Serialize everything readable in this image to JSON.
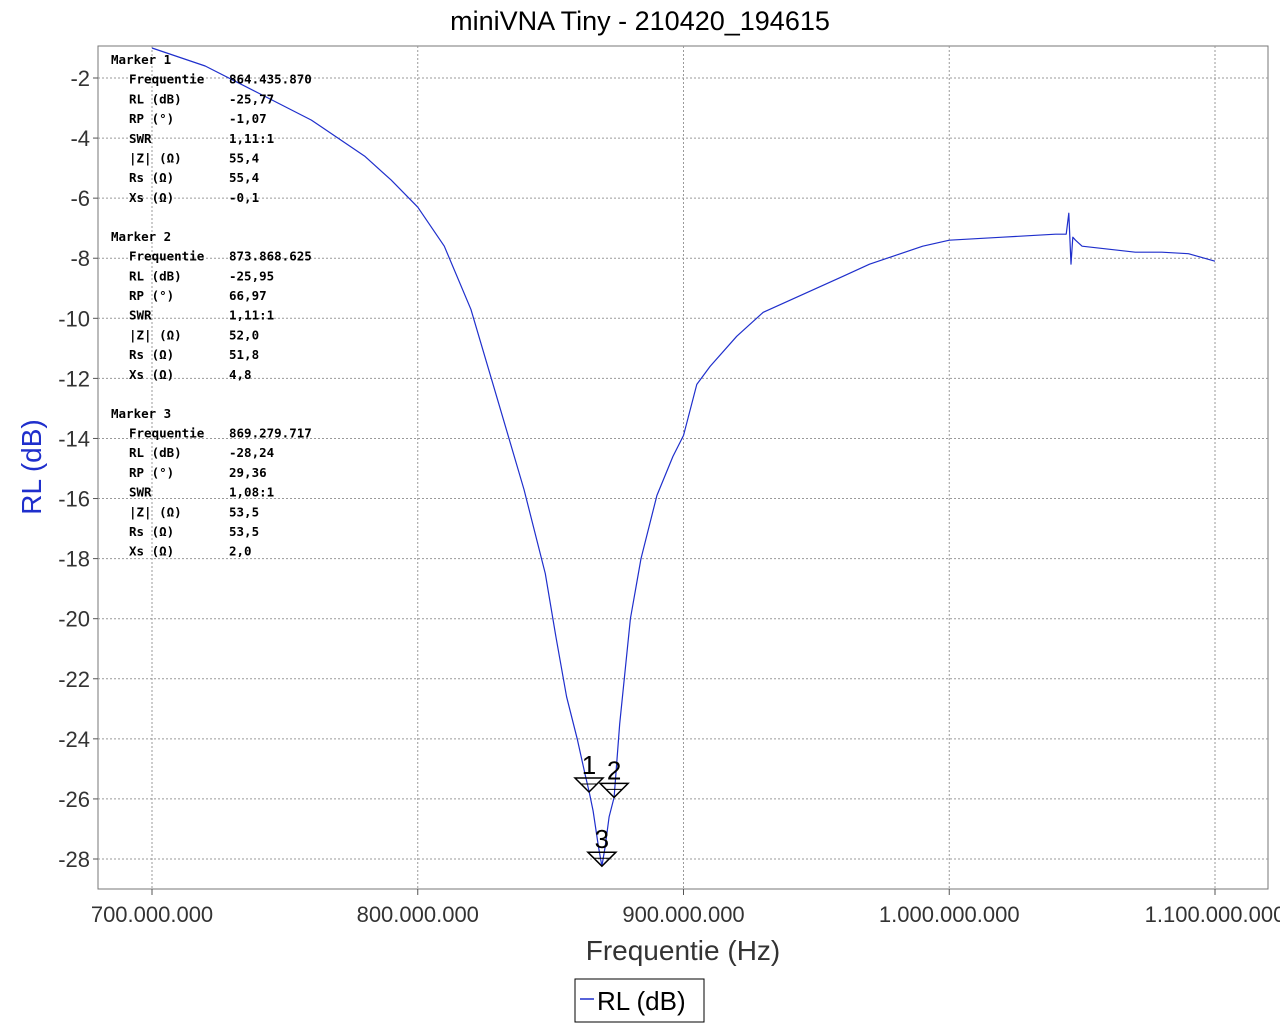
{
  "chart_data": {
    "type": "line",
    "title": "miniVNA Tiny - 210420_194615",
    "xlabel": "Frequentie (Hz)",
    "ylabel": "RL (dB)",
    "xlim": [
      680000000,
      1120000000
    ],
    "ylim": [
      -29.3,
      -1
    ],
    "x_ticks": [
      700000000,
      800000000,
      900000000,
      1000000000,
      1100000000
    ],
    "x_tick_labels": [
      "700.000.000",
      "800.000.000",
      "900.000.000",
      "1.000.000.000",
      "1.100.000.000"
    ],
    "y_ticks": [
      -2,
      -4,
      -6,
      -8,
      -10,
      -12,
      -14,
      -16,
      -18,
      -20,
      -22,
      -24,
      -26,
      -28
    ],
    "y_tick_labels": [
      "-2",
      "-4",
      "-6",
      "-8",
      "-10",
      "-12",
      "-14",
      "-16",
      "-18",
      "-20",
      "-22",
      "-24",
      "-26",
      "-28"
    ],
    "grid": true,
    "legend_position": "bottom-center",
    "series": [
      {
        "name": "RL (dB)",
        "color": "#1f2fcc",
        "x": [
          700000000,
          720000000,
          740000000,
          760000000,
          780000000,
          790000000,
          800000000,
          810000000,
          820000000,
          830000000,
          840000000,
          848000000,
          852000000,
          856000000,
          860000000,
          863000000,
          864500000,
          866000000,
          868000000,
          869300000,
          870500000,
          872000000,
          873900000,
          876000000,
          880000000,
          884000000,
          890000000,
          896000000,
          900000000,
          905000000,
          910000000,
          920000000,
          930000000,
          940000000,
          950000000,
          960000000,
          970000000,
          980000000,
          990000000,
          1000000000,
          1010000000,
          1020000000,
          1030000000,
          1040000000,
          1044000000,
          1045000000,
          1045800000,
          1046500000,
          1047500000,
          1050000000,
          1060000000,
          1070000000,
          1080000000,
          1090000000,
          1100000000
        ],
        "values": [
          -1.0,
          -1.6,
          -2.5,
          -3.4,
          -4.6,
          -5.4,
          -6.3,
          -7.6,
          -9.7,
          -12.7,
          -15.7,
          -18.5,
          -20.6,
          -22.6,
          -24.0,
          -25.2,
          -25.77,
          -26.4,
          -27.6,
          -28.24,
          -27.6,
          -26.6,
          -25.95,
          -23.5,
          -20.0,
          -18.0,
          -15.9,
          -14.6,
          -13.9,
          -12.2,
          -11.6,
          -10.6,
          -9.8,
          -9.4,
          -9.0,
          -8.6,
          -8.2,
          -7.9,
          -7.6,
          -7.4,
          -7.35,
          -7.3,
          -7.25,
          -7.2,
          -7.2,
          -6.5,
          -8.2,
          -7.3,
          -7.4,
          -7.6,
          -7.7,
          -7.8,
          -7.8,
          -7.85,
          -8.1
        ]
      }
    ],
    "markers": [
      {
        "id": "1",
        "x": 864435870,
        "y": -25.77
      },
      {
        "id": "2",
        "x": 873868625,
        "y": -25.95
      },
      {
        "id": "3",
        "x": 869279717,
        "y": -28.24
      }
    ]
  },
  "marker_info": [
    {
      "header": "Marker 1",
      "rows": [
        {
          "label": "Frequentie",
          "value": "864.435.870"
        },
        {
          "label": "RL (dB)",
          "value": "-25,77"
        },
        {
          "label": "RP (°)",
          "value": "-1,07"
        },
        {
          "label": "SWR",
          "value": "1,11:1"
        },
        {
          "label": "|Z| (Ω)",
          "value": "55,4"
        },
        {
          "label": "Rs (Ω)",
          "value": "55,4"
        },
        {
          "label": "Xs (Ω)",
          "value": "-0,1"
        }
      ]
    },
    {
      "header": "Marker 2",
      "rows": [
        {
          "label": "Frequentie",
          "value": "873.868.625"
        },
        {
          "label": "RL (dB)",
          "value": "-25,95"
        },
        {
          "label": "RP (°)",
          "value": "66,97"
        },
        {
          "label": "SWR",
          "value": "1,11:1"
        },
        {
          "label": "|Z| (Ω)",
          "value": "52,0"
        },
        {
          "label": "Rs (Ω)",
          "value": "51,8"
        },
        {
          "label": "Xs (Ω)",
          "value": "4,8"
        }
      ]
    },
    {
      "header": "Marker 3",
      "rows": [
        {
          "label": "Frequentie",
          "value": "869.279.717"
        },
        {
          "label": "RL (dB)",
          "value": "-28,24"
        },
        {
          "label": "RP (°)",
          "value": "29,36"
        },
        {
          "label": "SWR",
          "value": "1,08:1"
        },
        {
          "label": "|Z| (Ω)",
          "value": "53,5"
        },
        {
          "label": "Rs (Ω)",
          "value": "53,5"
        },
        {
          "label": "Xs (Ω)",
          "value": "2,0"
        }
      ]
    }
  ],
  "legend": {
    "label": "RL (dB)"
  },
  "colors": {
    "series": "#1f2fcc",
    "grid": "#9a9a9a",
    "axis_label_y": "#1f2fcc"
  }
}
